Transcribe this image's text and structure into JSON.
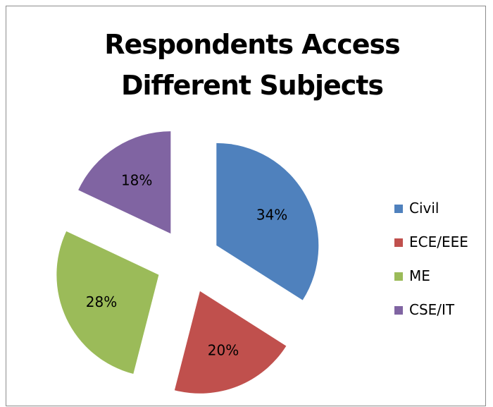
{
  "chart_data": {
    "type": "pie",
    "title": "Respondents Access Different Subjects",
    "title_lines": [
      "Respondents Access",
      "Different Subjects"
    ],
    "categories": [
      "Civil",
      "ECE/EEE",
      "ME",
      "CSE/IT"
    ],
    "values": [
      34,
      20,
      28,
      18
    ],
    "labels": [
      "34%",
      "20%",
      "28%",
      "18%"
    ],
    "colors": [
      "#4f81bd",
      "#c0504d",
      "#9bbb59",
      "#8064a2"
    ],
    "exploded": true,
    "legend_position": "right"
  }
}
